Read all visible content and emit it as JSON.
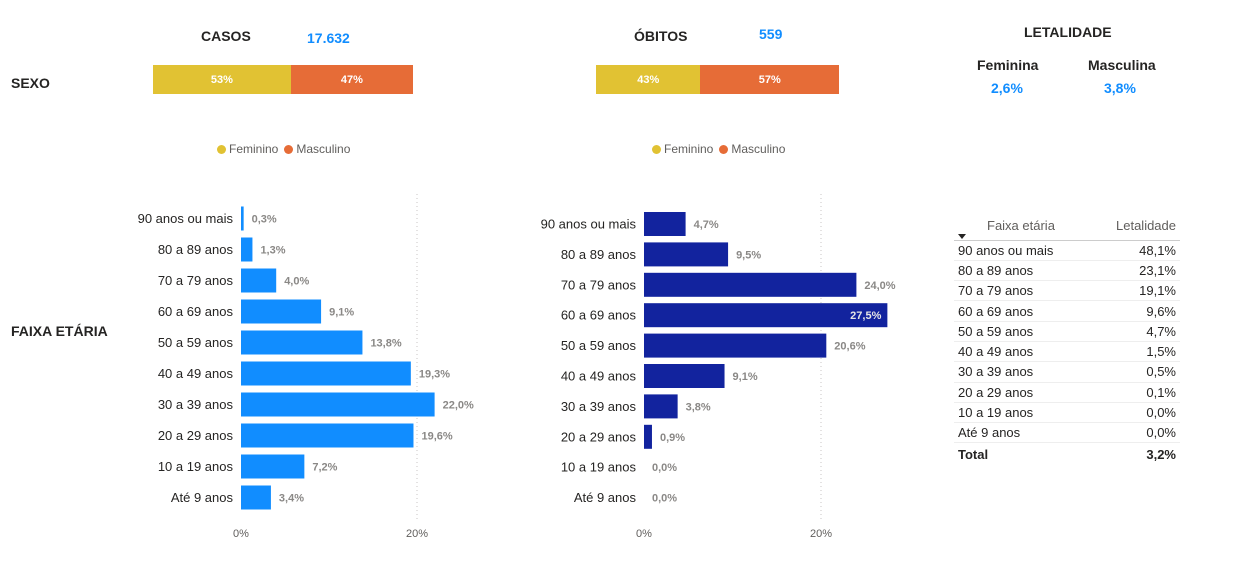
{
  "sexo": {
    "row_label": "SEXO",
    "casos": {
      "title": "CASOS",
      "total": "17.632",
      "segments": [
        {
          "name": "Feminino",
          "label": "53%",
          "value": 53,
          "color": "#e1c233"
        },
        {
          "name": "Masculino",
          "label": "47%",
          "value": 47,
          "color": "#e66c37"
        }
      ]
    },
    "obitos": {
      "title": "ÓBITOS",
      "total": "559",
      "segments": [
        {
          "name": "Feminino",
          "label": "43%",
          "value": 43,
          "color": "#e1c233"
        },
        {
          "name": "Masculino",
          "label": "57%",
          "value": 57,
          "color": "#e66c37"
        }
      ]
    },
    "legend": [
      {
        "name": "Feminino",
        "color": "#e1c233"
      },
      {
        "name": "Masculino",
        "color": "#e66c37"
      }
    ]
  },
  "letalidade": {
    "title": "LETALIDADE",
    "feminina_label": "Feminina",
    "feminina_value": "2,6%",
    "masculina_label": "Masculina",
    "masculina_value": "3,8%"
  },
  "faixa_row_label": "FAIXA ETÁRIA",
  "chart_data": [
    {
      "type": "bar",
      "orientation": "horizontal",
      "categories": [
        "90 anos ou mais",
        "80 a 89 anos",
        "70 a 79 anos",
        "60 a 69 anos",
        "50 a 59 anos",
        "40 a 49 anos",
        "30 a 39 anos",
        "20 a 29 anos",
        "10 a 19 anos",
        "Até 9 anos"
      ],
      "values": [
        0.3,
        1.3,
        4.0,
        9.1,
        13.8,
        19.3,
        22.0,
        19.6,
        7.2,
        3.4
      ],
      "value_labels": [
        "0,3%",
        "1,3%",
        "4,0%",
        "9,1%",
        "13,8%",
        "19,3%",
        "22,0%",
        "19,6%",
        "7,2%",
        "3,4%"
      ],
      "xticks": [
        "0%",
        "20%"
      ],
      "xlim": [
        0,
        20
      ],
      "color": "#118dff",
      "grid": true
    },
    {
      "type": "bar",
      "orientation": "horizontal",
      "categories": [
        "90 anos ou mais",
        "80 a 89 anos",
        "70 a 79 anos",
        "60 a 69 anos",
        "50 a 59 anos",
        "40 a 49 anos",
        "30 a 39 anos",
        "20 a 29 anos",
        "10 a 19 anos",
        "Até 9 anos"
      ],
      "values": [
        4.7,
        9.5,
        24.0,
        27.5,
        20.6,
        9.1,
        3.8,
        0.9,
        0.0,
        0.0
      ],
      "value_labels": [
        "4,7%",
        "9,5%",
        "24,0%",
        "27,5%",
        "20,6%",
        "9,1%",
        "3,8%",
        "0,9%",
        "0,0%",
        "0,0%"
      ],
      "xticks": [
        "0%",
        "20%"
      ],
      "xlim": [
        0,
        20
      ],
      "color": "#12239e",
      "grid": true
    },
    {
      "type": "table",
      "columns": [
        "Faixa etária",
        "Letalidade"
      ],
      "rows": [
        [
          "90 anos ou mais",
          "48,1%"
        ],
        [
          "80 a 89 anos",
          "23,1%"
        ],
        [
          "70 a 79 anos",
          "19,1%"
        ],
        [
          "60 a 69 anos",
          "9,6%"
        ],
        [
          "50 a 59 anos",
          "4,7%"
        ],
        [
          "40 a 49 anos",
          "1,5%"
        ],
        [
          "30 a 39 anos",
          "0,5%"
        ],
        [
          "20 a 29 anos",
          "0,1%"
        ],
        [
          "10 a 19 anos",
          "0,0%"
        ],
        [
          "Até 9 anos",
          "0,0%"
        ]
      ],
      "total": [
        "Total",
        "3,2%"
      ]
    }
  ]
}
